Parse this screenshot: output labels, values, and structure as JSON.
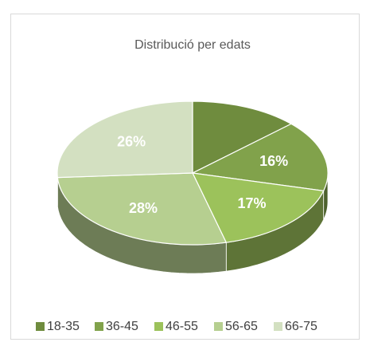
{
  "chart_data": {
    "type": "pie3d",
    "title": "Distribució per edats",
    "categories": [
      "18-35",
      "36-45",
      "46-55",
      "56-65",
      "66-75"
    ],
    "values": [
      13,
      16,
      17,
      28,
      26
    ],
    "value_labels": [
      null,
      "16%",
      "17%",
      "28%",
      "26%"
    ],
    "colors": [
      "#6f8c3e",
      "#81a24b",
      "#9cc25b",
      "#b6cf90",
      "#d3e0c1"
    ],
    "legend": "bottom"
  }
}
